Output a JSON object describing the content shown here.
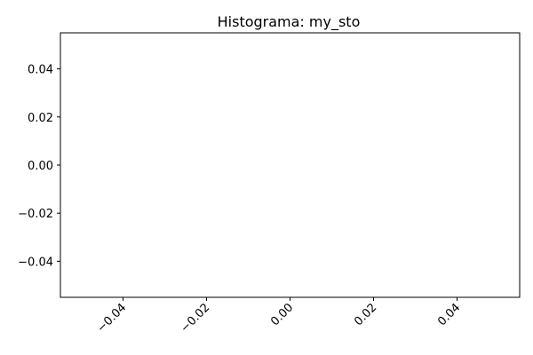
{
  "chart_data": {
    "type": "bar",
    "title": "Histograma: my_sto",
    "xlabel": "",
    "ylabel": "",
    "xlim": [
      -0.055,
      0.055
    ],
    "ylim": [
      -0.055,
      0.055
    ],
    "x_ticks": [
      {
        "value": -0.04,
        "label": "−0.04"
      },
      {
        "value": -0.02,
        "label": "−0.02"
      },
      {
        "value": 0.0,
        "label": "0.00"
      },
      {
        "value": 0.02,
        "label": "0.02"
      },
      {
        "value": 0.04,
        "label": "0.04"
      }
    ],
    "y_ticks": [
      {
        "value": 0.04,
        "label": "0.04"
      },
      {
        "value": 0.02,
        "label": "0.02"
      },
      {
        "value": 0.0,
        "label": "0.00"
      },
      {
        "value": -0.02,
        "label": "−0.02"
      },
      {
        "value": -0.04,
        "label": "−0.04"
      }
    ],
    "x_tick_rotation": 45,
    "grid": false,
    "values": [],
    "colors": {
      "axis": "#000000",
      "background": "#ffffff"
    }
  }
}
